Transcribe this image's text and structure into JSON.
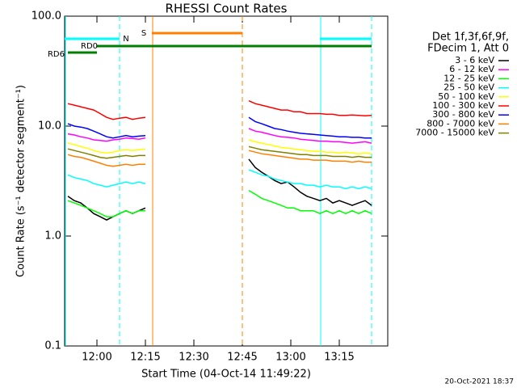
{
  "chart_data": {
    "type": "line",
    "title": "RHESSI Count Rates",
    "x_label": "Start Time (04-Oct-14 11:49:22)",
    "y_label": "Count Rate (s⁻¹ detector segment⁻¹)",
    "footer": "20-Oct-2021 18:37",
    "log_y": true,
    "xlim": [
      "11:50",
      "13:30"
    ],
    "xticks": [
      "12:00",
      "12:15",
      "12:30",
      "12:45",
      "13:00",
      "13:15"
    ],
    "ylim": [
      0.1,
      100
    ],
    "yticks": [
      0.1,
      {
        "value": 1,
        "label": "1.0"
      },
      {
        "value": 10,
        "label": "10.0"
      },
      {
        "value": 100,
        "label": "100.0"
      }
    ],
    "legend_title": [
      "Det 1f,3f,6f,9f,",
      "FDecim 1, Att 0"
    ],
    "x": [
      "11:51",
      "11:53",
      "11:55",
      "11:57",
      "11:59",
      "12:01",
      "12:03",
      "12:05",
      "12:07",
      "12:09",
      "12:11",
      "12:13",
      "12:15",
      "12:30",
      "12:47",
      "12:49",
      "12:51",
      "12:53",
      "12:55",
      "12:57",
      "12:59",
      "13:01",
      "13:03",
      "13:05",
      "13:07",
      "13:09",
      "13:11",
      "13:13",
      "13:15",
      "13:17",
      "13:19",
      "13:21",
      "13:23",
      "13:25"
    ],
    "series": [
      {
        "name": "3 - 6 keV",
        "color": "#000000",
        "values": [
          2.3,
          2.1,
          2.0,
          1.8,
          1.6,
          1.5,
          1.4,
          1.5,
          1.6,
          1.7,
          1.6,
          1.7,
          1.8,
          null,
          5.0,
          4.2,
          3.8,
          3.5,
          3.2,
          3.0,
          3.1,
          2.8,
          2.5,
          2.3,
          2.2,
          2.1,
          2.2,
          2.0,
          2.1,
          2.0,
          1.9,
          2.0,
          2.1,
          1.9
        ]
      },
      {
        "name": "6 - 12 keV",
        "color": "#ff00ff",
        "values": [
          8.5,
          8.3,
          8.0,
          7.8,
          7.5,
          7.4,
          7.3,
          7.5,
          7.6,
          7.8,
          7.7,
          7.6,
          7.8,
          null,
          9.5,
          9.0,
          8.8,
          8.5,
          8.2,
          8.0,
          7.9,
          7.8,
          7.6,
          7.5,
          7.4,
          7.3,
          7.3,
          7.2,
          7.2,
          7.1,
          7.0,
          7.1,
          7.2,
          7.0
        ]
      },
      {
        "name": "12 - 25 keV",
        "color": "#00ff00",
        "values": [
          2.1,
          2.0,
          1.9,
          1.8,
          1.7,
          1.6,
          1.5,
          1.5,
          1.6,
          1.7,
          1.6,
          1.7,
          1.7,
          null,
          2.6,
          2.4,
          2.2,
          2.1,
          2.0,
          1.9,
          1.8,
          1.8,
          1.7,
          1.7,
          1.7,
          1.6,
          1.7,
          1.6,
          1.7,
          1.6,
          1.7,
          1.6,
          1.7,
          1.6
        ]
      },
      {
        "name": "25 - 50 keV",
        "color": "#00ffff",
        "values": [
          3.6,
          3.4,
          3.3,
          3.2,
          3.0,
          2.9,
          2.8,
          2.9,
          3.0,
          3.1,
          3.0,
          3.1,
          3.0,
          null,
          4.0,
          3.8,
          3.6,
          3.5,
          3.3,
          3.2,
          3.1,
          3.0,
          3.0,
          2.9,
          2.9,
          2.8,
          2.9,
          2.8,
          2.8,
          2.7,
          2.8,
          2.7,
          2.8,
          2.7
        ]
      },
      {
        "name": "50 - 100 keV",
        "color": "#ffff00",
        "values": [
          7.0,
          6.8,
          6.5,
          6.3,
          6.0,
          5.8,
          5.7,
          5.8,
          6.0,
          6.1,
          6.0,
          6.1,
          6.2,
          null,
          7.5,
          7.2,
          7.0,
          6.8,
          6.6,
          6.4,
          6.3,
          6.2,
          6.1,
          6.0,
          5.9,
          5.9,
          5.8,
          5.8,
          5.7,
          5.8,
          5.7,
          5.6,
          5.7,
          5.6
        ]
      },
      {
        "name": "100 - 300 keV",
        "color": "#ff0000",
        "values": [
          16,
          15.5,
          15,
          14.5,
          14,
          13,
          12,
          11.5,
          11.8,
          12,
          11.5,
          11.8,
          12,
          null,
          17,
          16,
          15.5,
          15,
          14.5,
          14,
          14,
          13.5,
          13.5,
          13,
          13,
          13,
          12.8,
          12.8,
          12.5,
          12.5,
          12.6,
          12.5,
          12.4,
          12.5
        ]
      },
      {
        "name": "300 - 800 keV",
        "color": "#0000ff",
        "values": [
          10.5,
          10,
          9.8,
          9.5,
          9,
          8.5,
          8,
          7.8,
          8,
          8.2,
          8,
          8.1,
          8.2,
          null,
          12,
          11,
          10.5,
          10,
          9.5,
          9.3,
          9,
          8.8,
          8.6,
          8.5,
          8.4,
          8.3,
          8.2,
          8.1,
          8,
          8,
          7.9,
          7.9,
          7.8,
          7.8
        ]
      },
      {
        "name": "800 - 7000 keV",
        "color": "#ff8000",
        "values": [
          5.5,
          5.3,
          5.2,
          5.0,
          4.8,
          4.6,
          4.4,
          4.3,
          4.4,
          4.5,
          4.4,
          4.5,
          4.5,
          null,
          6.0,
          5.8,
          5.6,
          5.5,
          5.4,
          5.3,
          5.2,
          5.1,
          5.0,
          5.0,
          4.9,
          4.9,
          4.9,
          4.8,
          4.8,
          4.8,
          4.7,
          4.8,
          4.7,
          4.7
        ]
      },
      {
        "name": "7000 - 15000 keV",
        "color": "#808000",
        "values": [
          6.2,
          6.0,
          5.8,
          5.6,
          5.4,
          5.2,
          5.1,
          5.2,
          5.3,
          5.4,
          5.3,
          5.4,
          5.4,
          null,
          6.5,
          6.3,
          6.1,
          6.0,
          5.9,
          5.8,
          5.7,
          5.6,
          5.5,
          5.5,
          5.4,
          5.4,
          5.4,
          5.3,
          5.3,
          5.3,
          5.2,
          5.3,
          5.2,
          5.2
        ]
      }
    ],
    "markers": [
      {
        "label": "S",
        "color": "#ff8000",
        "vlines": true,
        "intervals": [
          [
            "12:17",
            "12:45"
          ]
        ]
      },
      {
        "label": "N",
        "color": "#00ffff",
        "vlines": true,
        "intervals": [
          [
            "11:50",
            "12:07"
          ],
          [
            "13:09",
            "13:25"
          ]
        ]
      },
      {
        "label": "RD0",
        "color": "#008000",
        "vlines": false,
        "intervals": [
          [
            "12:00",
            "13:25"
          ]
        ]
      },
      {
        "label": "RD6",
        "color": "#008000",
        "vlines": false,
        "intervals": [
          [
            "11:51",
            "12:00"
          ]
        ]
      }
    ]
  }
}
